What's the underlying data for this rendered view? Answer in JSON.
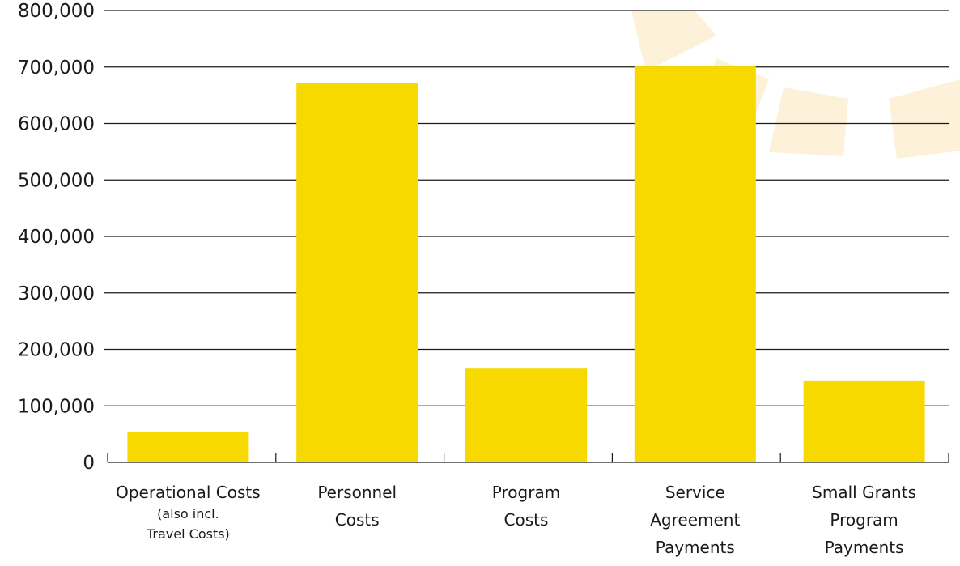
{
  "chart_data": {
    "type": "bar",
    "title": "",
    "xlabel": "",
    "ylabel": "",
    "categories": [
      {
        "lines": [
          "Operational Costs",
          "(also incl.",
          "Travel Costs)"
        ]
      },
      {
        "lines": [
          "Personnel",
          "Costs"
        ]
      },
      {
        "lines": [
          "Program",
          "Costs"
        ]
      },
      {
        "lines": [
          "Service",
          "Agreement",
          "Payments"
        ]
      },
      {
        "lines": [
          "Small Grants",
          "Program",
          "Payments"
        ]
      }
    ],
    "values": [
      53000,
      672000,
      166000,
      701000,
      145000
    ],
    "ylim": [
      0,
      800000
    ],
    "yticks": [
      "0",
      "100,000",
      "200,000",
      "300,000",
      "400,000",
      "500,000",
      "600,000",
      "700,000",
      "800,000"
    ],
    "grid": true,
    "legend": "none"
  },
  "colors": {
    "bar": "#f7d900",
    "grid": "#1a1a1a",
    "watermark": "#fdf1da",
    "text": "#1a1a1a"
  },
  "decoration": {
    "watermark_icon": "sun-arc-watermark-icon"
  }
}
